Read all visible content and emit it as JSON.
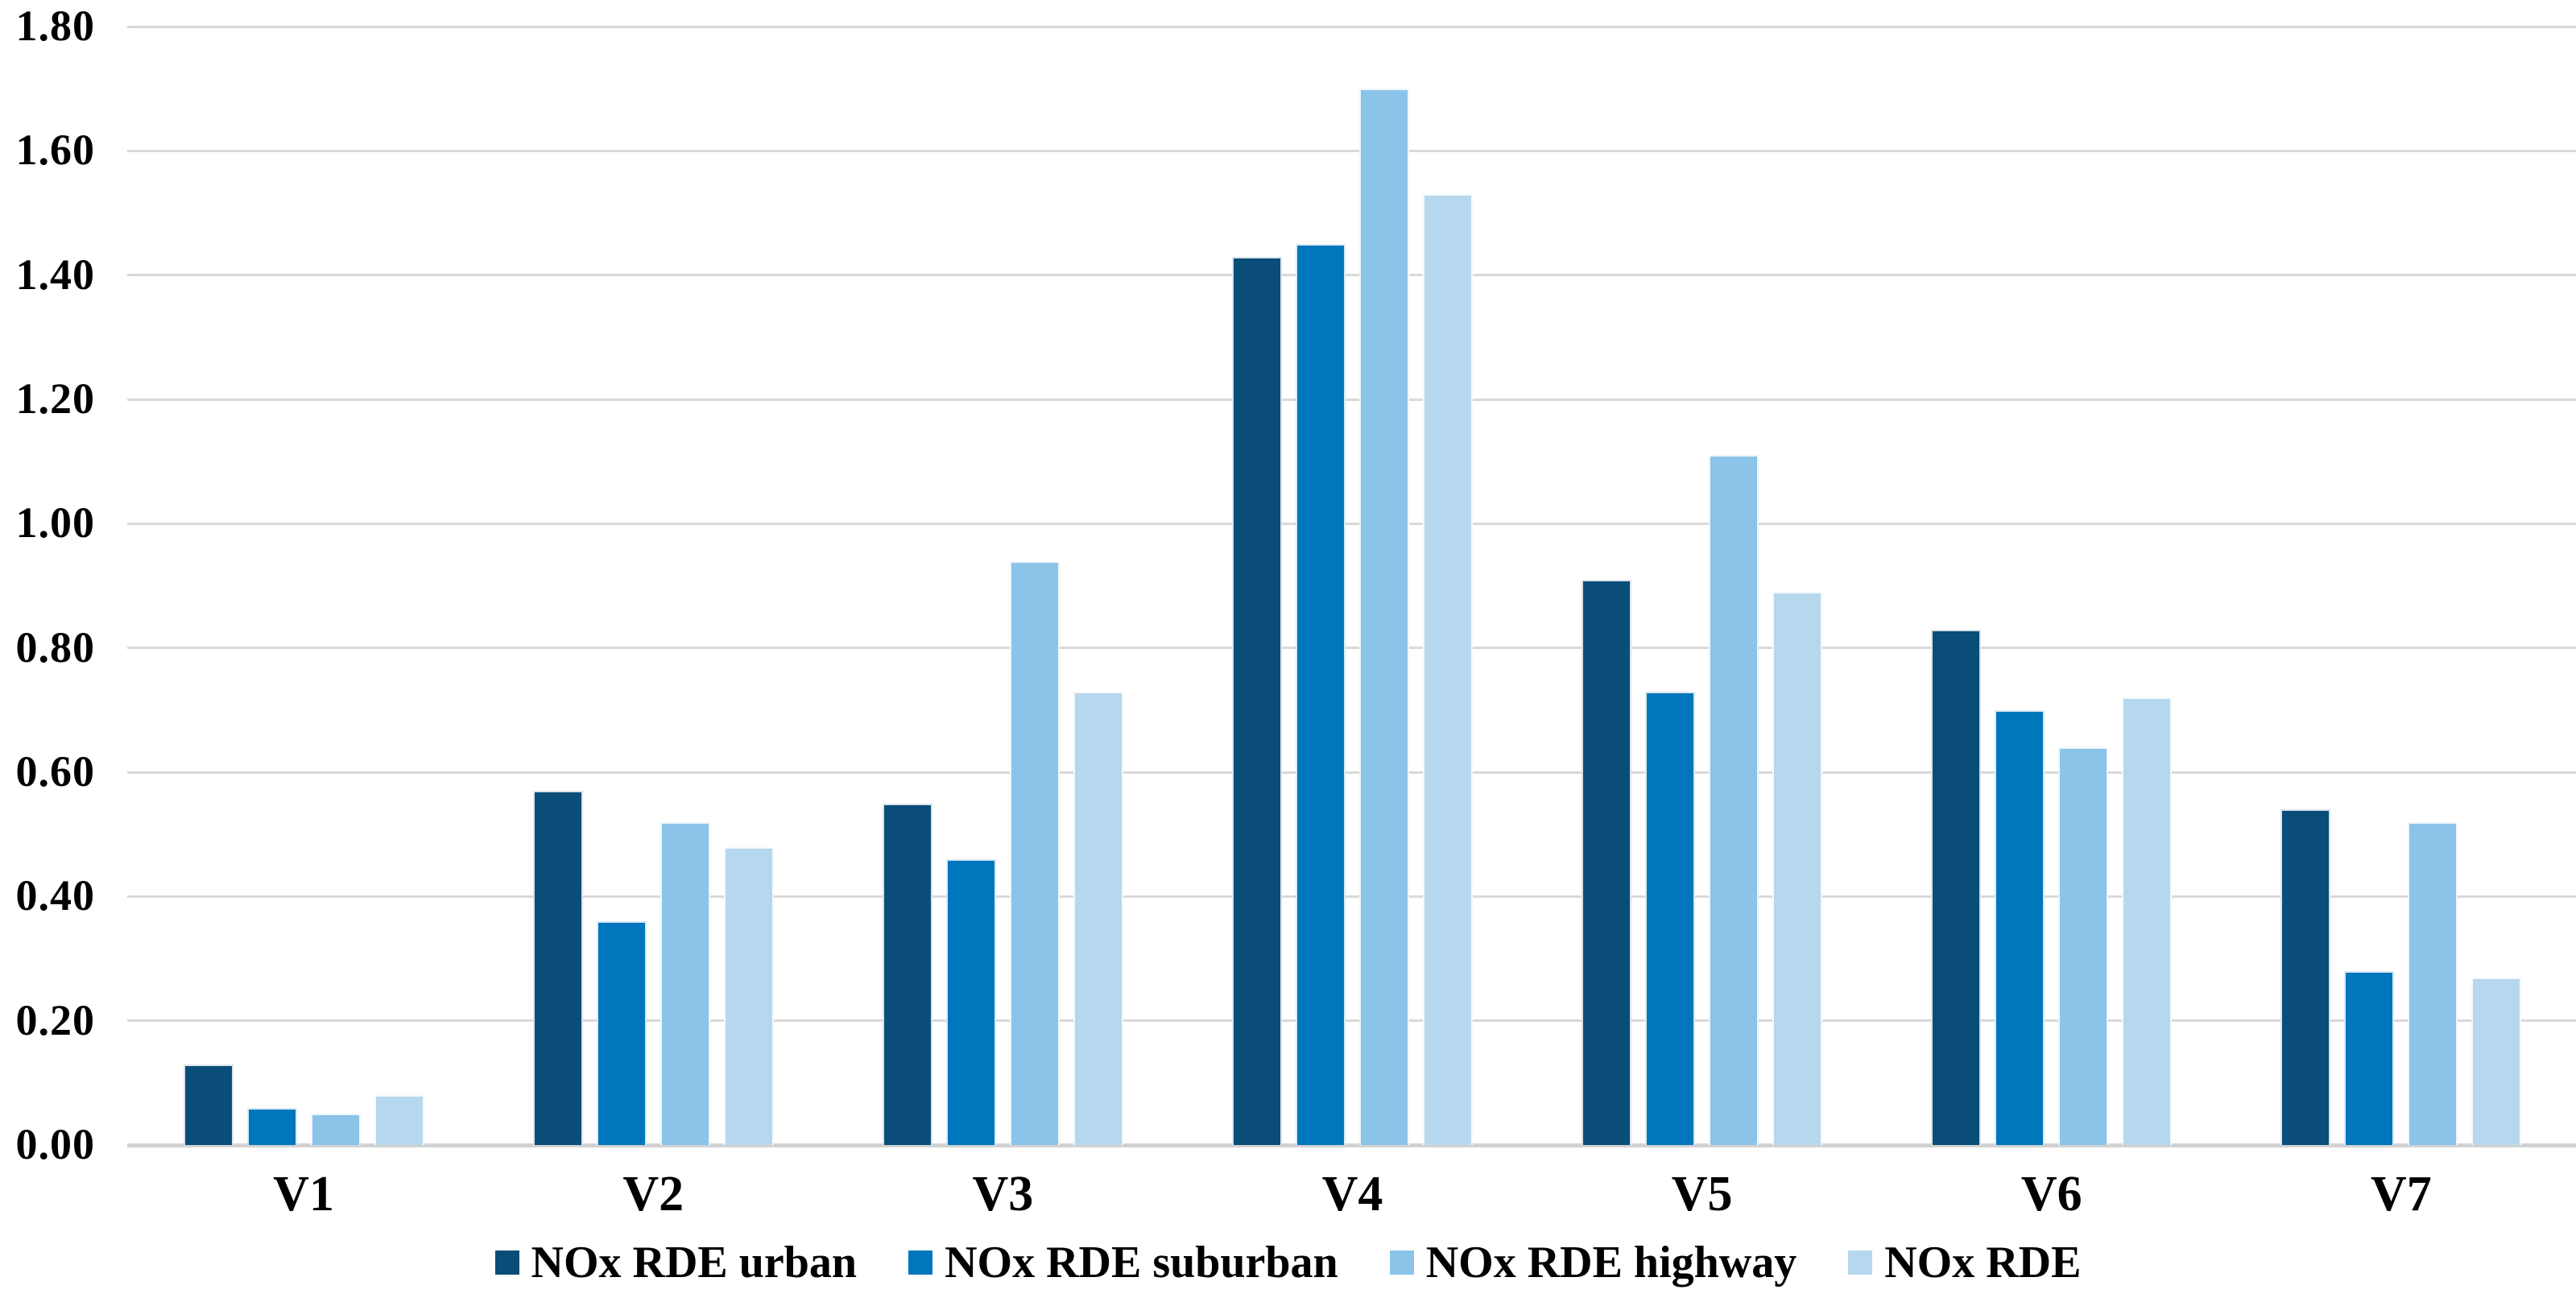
{
  "chart_data": {
    "type": "bar",
    "title": "",
    "xlabel": "",
    "ylabel": "",
    "categories": [
      "V1",
      "V2",
      "V3",
      "V4",
      "V5",
      "V6",
      "V7"
    ],
    "series": [
      {
        "name": "NOx RDE urban",
        "color": "#0A4D78",
        "values": [
          0.13,
          0.57,
          0.55,
          1.43,
          0.91,
          0.83,
          0.54
        ]
      },
      {
        "name": "NOx RDE suburban",
        "color": "#0076BC",
        "values": [
          0.06,
          0.36,
          0.46,
          1.45,
          0.73,
          0.7,
          0.28
        ]
      },
      {
        "name": "NOx RDE highway",
        "color": "#8CC3E8",
        "values": [
          0.05,
          0.52,
          0.94,
          1.7,
          1.11,
          0.64,
          0.52
        ]
      },
      {
        "name": "NOx RDE",
        "color": "#B6D8EE",
        "values": [
          0.08,
          0.48,
          0.73,
          1.53,
          0.89,
          0.72,
          0.27
        ]
      }
    ],
    "ylim": [
      0,
      1.8
    ],
    "ytick_step": 0.2,
    "ytick_labels": [
      "0.00",
      "0.20",
      "0.40",
      "0.60",
      "0.80",
      "1.00",
      "1.20",
      "1.40",
      "1.60",
      "1.80"
    ],
    "grid": true,
    "legend_position": "bottom",
    "colors": {
      "gridline": "#D9D9D9",
      "axis_line": "#D2D2D2",
      "text": "#000000",
      "background": "#FFFFFF"
    }
  }
}
